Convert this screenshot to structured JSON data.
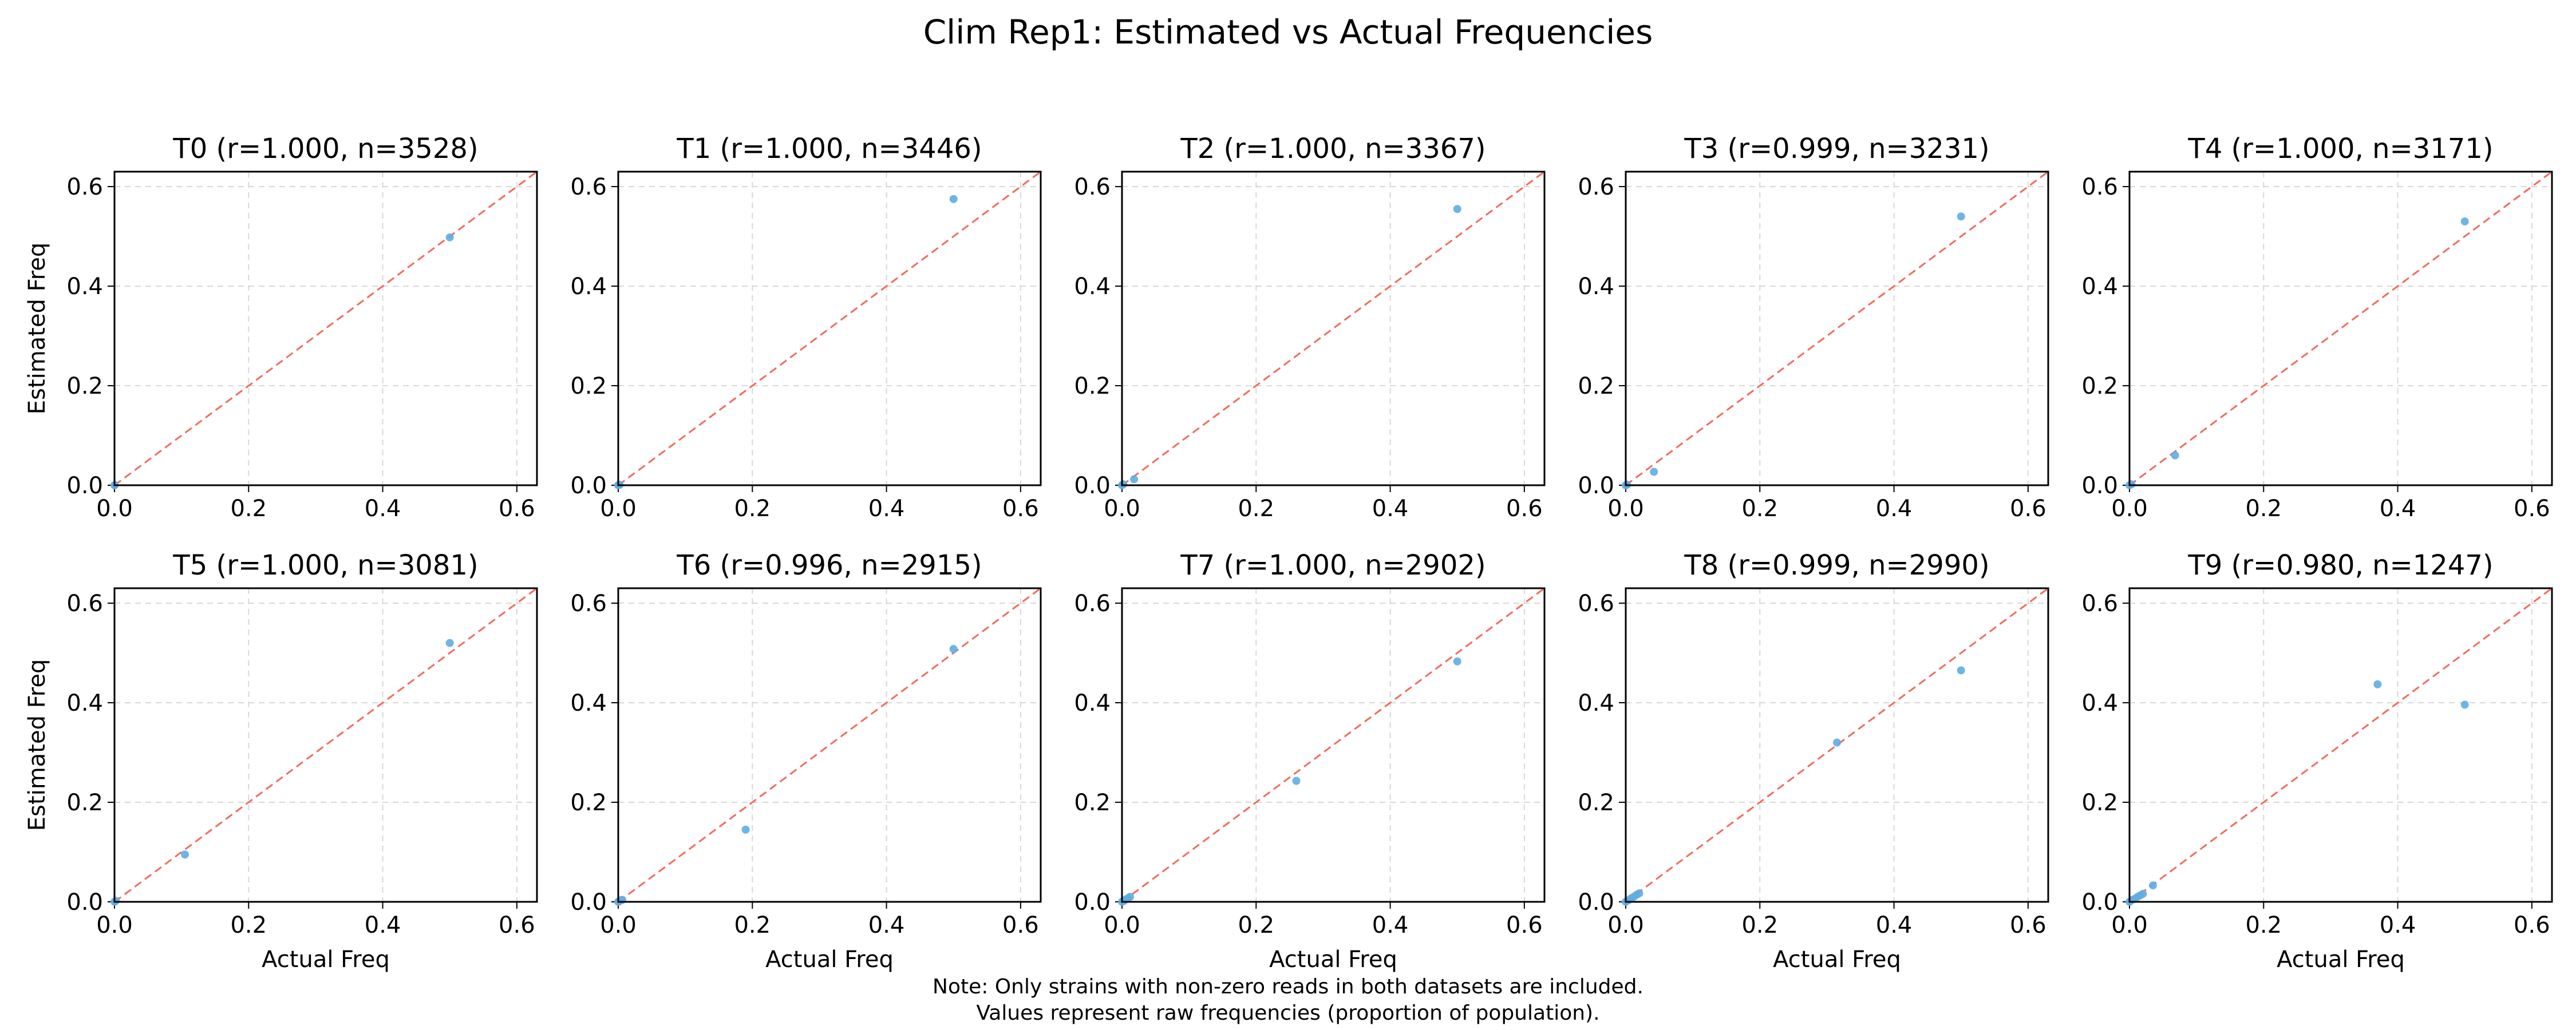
{
  "figure": {
    "title": "Clim Rep1: Estimated vs Actual Frequencies",
    "note_line1": "Note: Only strains with non-zero reads in both datasets are included.",
    "note_line2": "Values represent raw frequencies (proportion of population).",
    "colors": {
      "points": "#5dade2",
      "diagonal": "#f26b5b",
      "grid": "#d8d8d8",
      "axis": "#000000"
    }
  },
  "chart_data": [
    {
      "type": "scatter",
      "title": "T0 (r=1.000, n=3528)",
      "xlabel": "",
      "ylabel": "Estimated Freq",
      "xlim": [
        0,
        0.63
      ],
      "ylim": [
        0,
        0.63
      ],
      "xticks": [
        "0.0",
        "0.2",
        "0.4",
        "0.6"
      ],
      "yticks": [
        "0.0",
        "0.2",
        "0.4",
        "0.6"
      ],
      "grid": true,
      "points": [
        [
          0.0,
          0.0
        ],
        [
          0.0005,
          0.0003
        ],
        [
          0.5,
          0.498
        ]
      ]
    },
    {
      "type": "scatter",
      "title": "T1 (r=1.000, n=3446)",
      "xlabel": "",
      "ylabel": "",
      "xlim": [
        0,
        0.63
      ],
      "ylim": [
        0,
        0.63
      ],
      "xticks": [
        "0.0",
        "0.2",
        "0.4",
        "0.6"
      ],
      "yticks": [
        "0.0",
        "0.2",
        "0.4",
        "0.6"
      ],
      "grid": true,
      "points": [
        [
          0.0,
          0.0
        ],
        [
          0.001,
          0.001
        ],
        [
          0.002,
          0.001
        ],
        [
          0.5,
          0.575
        ]
      ]
    },
    {
      "type": "scatter",
      "title": "T2 (r=1.000, n=3367)",
      "xlabel": "",
      "ylabel": "",
      "xlim": [
        0,
        0.63
      ],
      "ylim": [
        0,
        0.63
      ],
      "xticks": [
        "0.0",
        "0.2",
        "0.4",
        "0.6"
      ],
      "yticks": [
        "0.0",
        "0.2",
        "0.4",
        "0.6"
      ],
      "grid": true,
      "points": [
        [
          0.0,
          0.0
        ],
        [
          0.002,
          0.002
        ],
        [
          0.018,
          0.012
        ],
        [
          0.5,
          0.555
        ]
      ]
    },
    {
      "type": "scatter",
      "title": "T3 (r=0.999, n=3231)",
      "xlabel": "",
      "ylabel": "",
      "xlim": [
        0,
        0.63
      ],
      "ylim": [
        0,
        0.63
      ],
      "xticks": [
        "0.0",
        "0.2",
        "0.4",
        "0.6"
      ],
      "yticks": [
        "0.0",
        "0.2",
        "0.4",
        "0.6"
      ],
      "grid": true,
      "points": [
        [
          0.0,
          0.0
        ],
        [
          0.002,
          0.001
        ],
        [
          0.042,
          0.027
        ],
        [
          0.5,
          0.54
        ]
      ]
    },
    {
      "type": "scatter",
      "title": "T4 (r=1.000, n=3171)",
      "xlabel": "",
      "ylabel": "",
      "xlim": [
        0,
        0.63
      ],
      "ylim": [
        0,
        0.63
      ],
      "xticks": [
        "0.0",
        "0.2",
        "0.4",
        "0.6"
      ],
      "yticks": [
        "0.0",
        "0.2",
        "0.4",
        "0.6"
      ],
      "grid": true,
      "points": [
        [
          0.0,
          0.0
        ],
        [
          0.003,
          0.002
        ],
        [
          0.068,
          0.06
        ],
        [
          0.5,
          0.53
        ]
      ]
    },
    {
      "type": "scatter",
      "title": "T5 (r=1.000, n=3081)",
      "xlabel": "Actual Freq",
      "ylabel": "Estimated Freq",
      "xlim": [
        0,
        0.63
      ],
      "ylim": [
        0,
        0.63
      ],
      "xticks": [
        "0.0",
        "0.2",
        "0.4",
        "0.6"
      ],
      "yticks": [
        "0.0",
        "0.2",
        "0.4",
        "0.6"
      ],
      "grid": true,
      "points": [
        [
          0.0,
          0.0
        ],
        [
          0.002,
          0.002
        ],
        [
          0.105,
          0.095
        ],
        [
          0.5,
          0.52
        ]
      ]
    },
    {
      "type": "scatter",
      "title": "T6 (r=0.996, n=2915)",
      "xlabel": "Actual Freq",
      "ylabel": "",
      "xlim": [
        0,
        0.63
      ],
      "ylim": [
        0,
        0.63
      ],
      "xticks": [
        "0.0",
        "0.2",
        "0.4",
        "0.6"
      ],
      "yticks": [
        "0.0",
        "0.2",
        "0.4",
        "0.6"
      ],
      "grid": true,
      "points": [
        [
          0.0,
          0.0
        ],
        [
          0.002,
          0.002
        ],
        [
          0.004,
          0.003
        ],
        [
          0.006,
          0.004
        ],
        [
          0.19,
          0.145
        ],
        [
          0.5,
          0.508
        ]
      ]
    },
    {
      "type": "scatter",
      "title": "T7 (r=1.000, n=2902)",
      "xlabel": "Actual Freq",
      "ylabel": "",
      "xlim": [
        0,
        0.63
      ],
      "ylim": [
        0,
        0.63
      ],
      "xticks": [
        "0.0",
        "0.2",
        "0.4",
        "0.6"
      ],
      "yticks": [
        "0.0",
        "0.2",
        "0.4",
        "0.6"
      ],
      "grid": true,
      "points": [
        [
          0.0,
          0.0
        ],
        [
          0.003,
          0.002
        ],
        [
          0.006,
          0.005
        ],
        [
          0.009,
          0.007
        ],
        [
          0.012,
          0.01
        ],
        [
          0.26,
          0.243
        ],
        [
          0.5,
          0.483
        ]
      ]
    },
    {
      "type": "scatter",
      "title": "T8 (r=0.999, n=2990)",
      "xlabel": "Actual Freq",
      "ylabel": "",
      "xlim": [
        0,
        0.63
      ],
      "ylim": [
        0,
        0.63
      ],
      "xticks": [
        "0.0",
        "0.2",
        "0.4",
        "0.6"
      ],
      "yticks": [
        "0.0",
        "0.2",
        "0.4",
        "0.6"
      ],
      "grid": true,
      "points": [
        [
          0.0,
          0.0
        ],
        [
          0.004,
          0.003
        ],
        [
          0.008,
          0.007
        ],
        [
          0.012,
          0.01
        ],
        [
          0.016,
          0.014
        ],
        [
          0.02,
          0.017
        ],
        [
          0.315,
          0.32
        ],
        [
          0.5,
          0.465
        ]
      ]
    },
    {
      "type": "scatter",
      "title": "T9 (r=0.980, n=1247)",
      "xlabel": "Actual Freq",
      "ylabel": "",
      "xlim": [
        0,
        0.63
      ],
      "ylim": [
        0,
        0.63
      ],
      "xticks": [
        "0.0",
        "0.2",
        "0.4",
        "0.6"
      ],
      "yticks": [
        "0.0",
        "0.2",
        "0.4",
        "0.6"
      ],
      "grid": true,
      "points": [
        [
          0.0,
          0.0
        ],
        [
          0.004,
          0.004
        ],
        [
          0.008,
          0.006
        ],
        [
          0.012,
          0.01
        ],
        [
          0.016,
          0.013
        ],
        [
          0.02,
          0.016
        ],
        [
          0.035,
          0.033
        ],
        [
          0.37,
          0.437
        ],
        [
          0.5,
          0.396
        ]
      ]
    }
  ]
}
